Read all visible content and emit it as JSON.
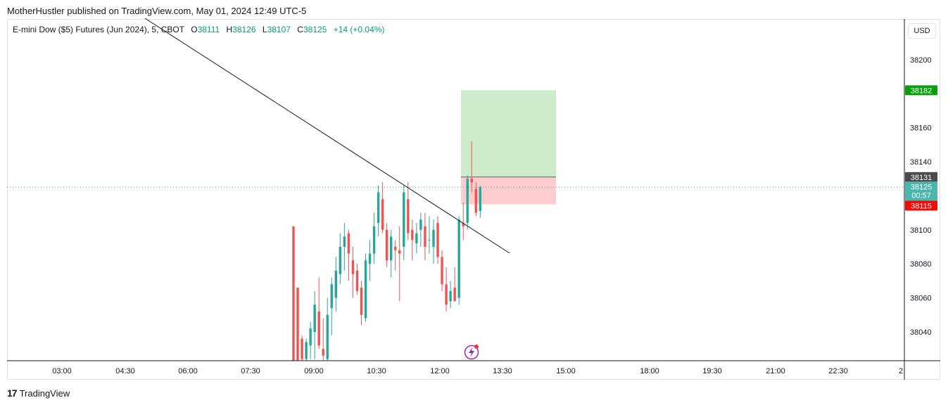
{
  "header": {
    "published_by": "MotherHustler published on TradingView.com, May 01, 2024 12:49 UTC-5"
  },
  "legend": {
    "symbol": "E-mini Dow ($5) Futures (Jun 2024), 5, CBOT",
    "o_label": "O",
    "o_value": "38111",
    "h_label": "H",
    "h_value": "38126",
    "l_label": "L",
    "l_value": "38107",
    "c_label": "C",
    "c_value": "38125",
    "change": "+14 (+0.04%)"
  },
  "currency_button": "USD",
  "footer": {
    "brand": "TradingView",
    "logo_text": "17"
  },
  "colors": {
    "up": "#26a69a",
    "down": "#ef5350",
    "profit_zone": "#cdebcb",
    "loss_zone": "#fdcccc",
    "target_tag": "#0a9f0a",
    "entry_tag": "#4a4a4a",
    "stop_tag": "#f00a0a",
    "last_price_tag": "#4db6ac",
    "trendline": "#131722"
  },
  "chart_data": {
    "type": "candlestick",
    "y_axis": {
      "ticks": [
        38040,
        38060,
        38080,
        38100,
        38120,
        38140,
        38160,
        38180,
        38200
      ],
      "tick_labels": [
        "38040",
        "38060",
        "38080",
        "38100",
        "",
        "38140",
        "38160",
        "",
        "38200"
      ]
    },
    "x_axis": {
      "tick_labels": [
        "03:00",
        "04:30",
        "06:00",
        "07:30",
        "09:00",
        "10:30",
        "12:00",
        "13:30",
        "15:00",
        "18:00",
        "19:30",
        "21:00",
        "22:30",
        "2"
      ]
    },
    "candles": [
      [
        38102,
        38102,
        38020,
        38020
      ],
      [
        38066,
        38066,
        38020,
        38020
      ],
      [
        38036,
        38038,
        38020,
        38024
      ],
      [
        38024,
        38036,
        38020,
        38034
      ],
      [
        38032,
        38046,
        38024,
        38042
      ],
      [
        38040,
        38064,
        38024,
        38056
      ],
      [
        38052,
        38072,
        38030,
        38032
      ],
      [
        38030,
        38048,
        38022,
        38026
      ],
      [
        38024,
        38060,
        38020,
        38050
      ],
      [
        38054,
        38072,
        38038,
        38068
      ],
      [
        38060,
        38084,
        38052,
        38076
      ],
      [
        38074,
        38098,
        38068,
        38090
      ],
      [
        38090,
        38104,
        38076,
        38096
      ],
      [
        38098,
        38100,
        38070,
        38086
      ],
      [
        38082,
        38090,
        38060,
        38074
      ],
      [
        38076,
        38080,
        38062,
        38064
      ],
      [
        38066,
        38070,
        38044,
        38050
      ],
      [
        38048,
        38086,
        38046,
        38082
      ],
      [
        38080,
        38094,
        38070,
        38086
      ],
      [
        38086,
        38110,
        38080,
        38102
      ],
      [
        38104,
        38126,
        38096,
        38122
      ],
      [
        38118,
        38128,
        38098,
        38100
      ],
      [
        38100,
        38104,
        38078,
        38082
      ],
      [
        38082,
        38100,
        38072,
        38096
      ],
      [
        38090,
        38094,
        38076,
        38088
      ],
      [
        38088,
        38102,
        38058,
        38086
      ],
      [
        38090,
        38126,
        38082,
        38122
      ],
      [
        38118,
        38128,
        38094,
        38098
      ],
      [
        38100,
        38106,
        38082,
        38094
      ],
      [
        38092,
        38104,
        38086,
        38098
      ],
      [
        38100,
        38110,
        38090,
        38106
      ],
      [
        38102,
        38110,
        38082,
        38090
      ],
      [
        38094,
        38108,
        38086,
        38094
      ],
      [
        38090,
        38106,
        38080,
        38100
      ],
      [
        38104,
        38108,
        38080,
        38084
      ],
      [
        38084,
        38088,
        38064,
        38068
      ],
      [
        38068,
        38078,
        38052,
        38056
      ],
      [
        38058,
        38070,
        38054,
        38064
      ],
      [
        38066,
        38078,
        38058,
        38058
      ],
      [
        38060,
        38108,
        38056,
        38106
      ],
      [
        38104,
        38116,
        38094,
        38102
      ],
      [
        38104,
        38132,
        38100,
        38130
      ],
      [
        38130,
        38152,
        38122,
        38128
      ],
      [
        38124,
        38128,
        38108,
        38110
      ],
      [
        38111,
        38126,
        38107,
        38125
      ]
    ],
    "position": {
      "target": 38182,
      "entry": 38131,
      "stop": 38115
    },
    "last_price": {
      "value": "38125",
      "countdown": "00:57"
    },
    "price_tags": {
      "target": "38182",
      "entry": "38131",
      "stop": "38115"
    }
  }
}
